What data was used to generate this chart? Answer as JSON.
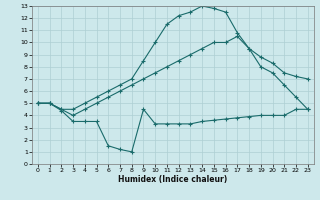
{
  "xlabel": "Humidex (Indice chaleur)",
  "bg_color": "#cde8eb",
  "grid_color": "#aecfd4",
  "line_color": "#1a6b6b",
  "xlim": [
    -0.5,
    23.5
  ],
  "ylim": [
    0,
    13
  ],
  "xticks": [
    0,
    1,
    2,
    3,
    4,
    5,
    6,
    7,
    8,
    9,
    10,
    11,
    12,
    13,
    14,
    15,
    16,
    17,
    18,
    19,
    20,
    21,
    22,
    23
  ],
  "yticks": [
    0,
    1,
    2,
    3,
    4,
    5,
    6,
    7,
    8,
    9,
    10,
    11,
    12,
    13
  ],
  "line1_x": [
    0,
    1,
    2,
    3,
    4,
    5,
    6,
    7,
    8,
    9,
    10,
    11,
    12,
    13,
    14,
    15,
    16,
    17,
    18,
    19,
    20,
    21,
    22,
    23
  ],
  "line1_y": [
    5.0,
    5.0,
    4.5,
    4.5,
    5.0,
    5.5,
    6.0,
    6.5,
    7.0,
    8.5,
    10.0,
    11.5,
    12.2,
    12.5,
    13.0,
    12.8,
    12.5,
    10.8,
    9.5,
    8.8,
    8.3,
    7.5,
    7.2,
    7.0
  ],
  "line2_x": [
    0,
    1,
    2,
    3,
    4,
    5,
    6,
    7,
    8,
    9,
    10,
    11,
    12,
    13,
    14,
    15,
    16,
    17,
    18,
    19,
    20,
    21,
    22,
    23
  ],
  "line2_y": [
    5.0,
    5.0,
    4.5,
    4.0,
    4.5,
    5.0,
    5.5,
    6.0,
    6.5,
    7.0,
    7.5,
    8.0,
    8.5,
    9.0,
    9.5,
    10.0,
    10.0,
    10.5,
    9.5,
    8.0,
    7.5,
    6.5,
    5.5,
    4.5
  ],
  "line3_x": [
    0,
    1,
    2,
    3,
    4,
    5,
    6,
    7,
    8,
    9,
    10,
    11,
    12,
    13,
    14,
    15,
    16,
    17,
    18,
    19,
    20,
    21,
    22,
    23
  ],
  "line3_y": [
    5.0,
    5.0,
    4.4,
    3.5,
    3.5,
    3.5,
    1.5,
    1.2,
    1.0,
    4.5,
    3.3,
    3.3,
    3.3,
    3.3,
    3.5,
    3.6,
    3.7,
    3.8,
    3.9,
    4.0,
    4.0,
    4.0,
    4.5,
    4.5
  ],
  "tick_fontsize": 4.5,
  "xlabel_fontsize": 5.5,
  "xlabel_fontweight": "bold"
}
